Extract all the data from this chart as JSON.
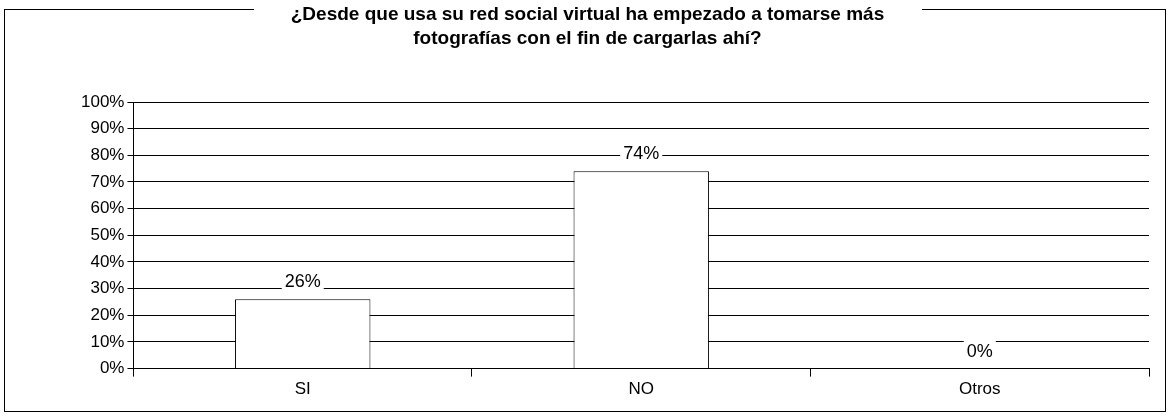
{
  "chart_data": {
    "type": "bar",
    "title": "¿Desde que usa su red social virtual ha empezado a tomarse más fotografías con el fin de cargarlas ahí?",
    "categories": [
      "SI",
      "NO",
      "Otros"
    ],
    "values": [
      26,
      74,
      0
    ],
    "value_labels": [
      "26%",
      "74%",
      "0%"
    ],
    "color": "#ffffff",
    "ylim": [
      0,
      100
    ],
    "yticks": [
      {
        "value": 0,
        "label": "0%"
      },
      {
        "value": 10,
        "label": "10%"
      },
      {
        "value": 20,
        "label": "20%"
      },
      {
        "value": 30,
        "label": "30%"
      },
      {
        "value": 40,
        "label": "40%"
      },
      {
        "value": 50,
        "label": "50%"
      },
      {
        "value": 60,
        "label": "60%"
      },
      {
        "value": 70,
        "label": "70%"
      },
      {
        "value": 80,
        "label": "80%"
      },
      {
        "value": 90,
        "label": "90%"
      },
      {
        "value": 100,
        "label": "100%"
      }
    ],
    "grid": "y"
  }
}
